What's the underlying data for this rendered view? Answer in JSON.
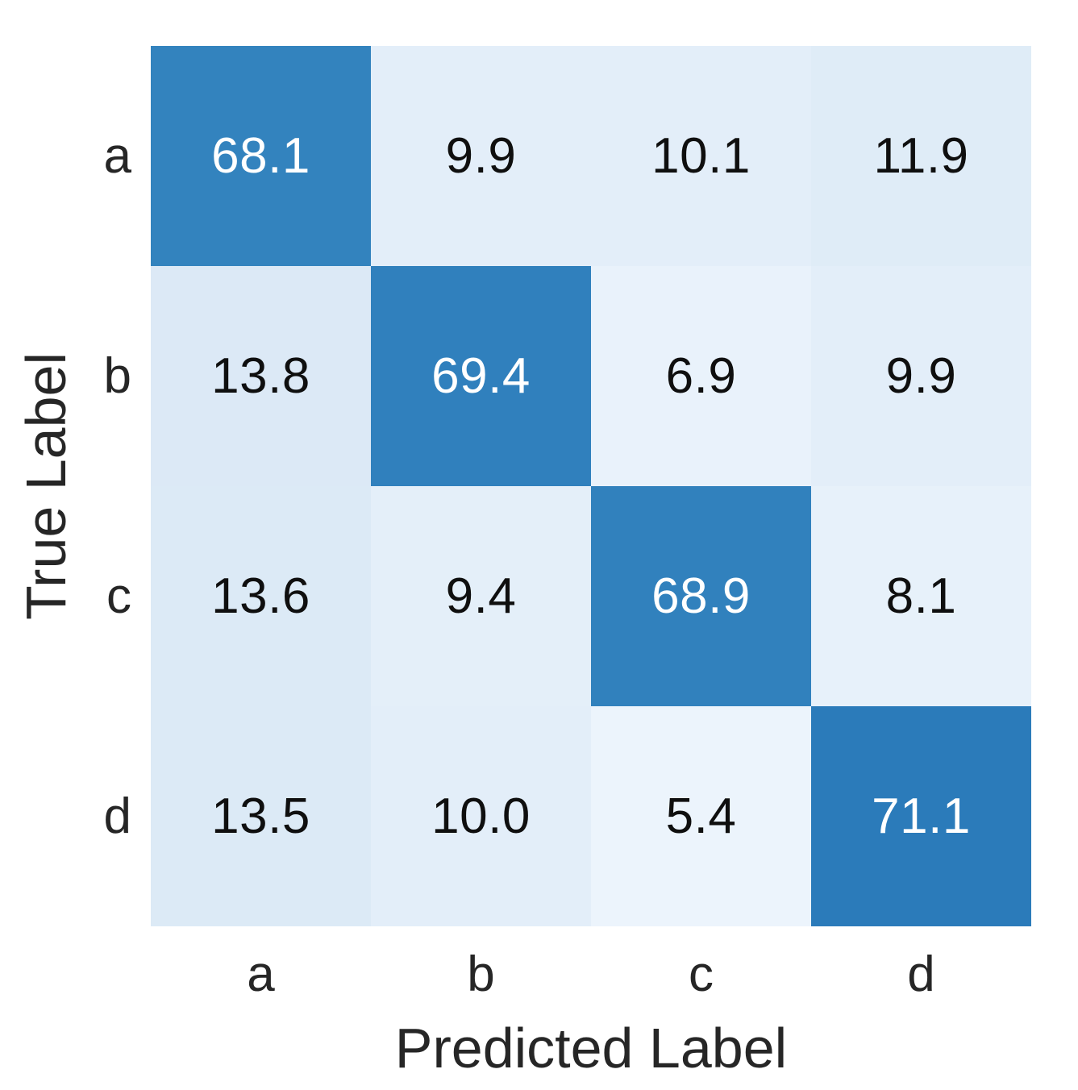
{
  "figure": {
    "background": "#ffffff",
    "axis_text_color": "#262626"
  },
  "chart_data": {
    "type": "heatmap",
    "title": "",
    "xlabel": "Predicted Label",
    "ylabel": "True Label",
    "x_categories": [
      "a",
      "b",
      "c",
      "d"
    ],
    "y_categories": [
      "a",
      "b",
      "c",
      "d"
    ],
    "values": [
      [
        68.1,
        9.9,
        10.1,
        11.9
      ],
      [
        13.8,
        69.4,
        6.9,
        9.9
      ],
      [
        13.6,
        9.4,
        68.9,
        8.1
      ],
      [
        13.5,
        10.0,
        5.4,
        71.1
      ]
    ],
    "annotation_decimals": 1,
    "colormap": "Blues",
    "vmin": 0,
    "vmax": 100,
    "colormap_stops": [
      [
        0.0,
        "#f7fbff"
      ],
      [
        0.125,
        "#deebf7"
      ],
      [
        0.25,
        "#c6dbef"
      ],
      [
        0.375,
        "#9ecae1"
      ],
      [
        0.5,
        "#6baed6"
      ],
      [
        0.625,
        "#4292c6"
      ],
      [
        0.75,
        "#2171b5"
      ],
      [
        0.875,
        "#08519c"
      ],
      [
        1.0,
        "#08306b"
      ]
    ],
    "annotation_color_dark": "#0f0f0f",
    "annotation_color_light": "#ffffff",
    "light_text_threshold": 0.5,
    "legend": "none",
    "grid": false,
    "colorbar": false
  }
}
